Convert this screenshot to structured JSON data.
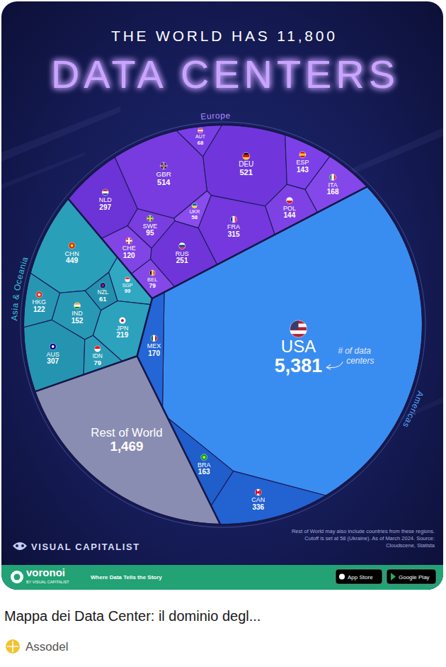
{
  "chart_data": {
    "type": "voronoi",
    "title": "THE WORLD HAS 11,800",
    "subtitle": "DATA CENTERS",
    "annotation": "# of data centers",
    "note": "Rest of World may also include countries from these regions. Cutoff is set at 58 (Ukraine). As of March 2024. Source: Cloudscene, Statista",
    "data_labels": true,
    "series": [
      {
        "name": "Europe",
        "color": "#b08aff",
        "colors": [
          "#7a3ee6",
          "#7036dc",
          "#7c40e8",
          "#8447ea",
          "#773bdf",
          "#6c33d6",
          "#8a4cec",
          "#7e42e4",
          "#7438de",
          "#8145e6",
          "#7a3de0",
          "#6f35d9",
          "#8548e8"
        ],
        "categories": [
          "AUT",
          "DEU",
          "ESP",
          "ITA",
          "GBR",
          "NLD",
          "UKR",
          "POL",
          "FRA",
          "CHE",
          "SWE",
          "RUS",
          "BEL"
        ],
        "values": [
          68,
          521,
          143,
          168,
          514,
          297,
          58,
          144,
          315,
          120,
          95,
          251,
          79
        ]
      },
      {
        "name": "Asia & Oceania",
        "color": "#3fc3d8",
        "colors": [
          "#2a9fba",
          "#2796b2",
          "#30a8c2",
          "#2899b5",
          "#2391ad",
          "#2ca2bd",
          "#2594b0",
          "#2b9cb8"
        ],
        "categories": [
          "CHN",
          "HKG",
          "SGP",
          "IND",
          "NZL",
          "JPN",
          "AUS",
          "IDN"
        ],
        "values": [
          449,
          122,
          99,
          152,
          61,
          219,
          307,
          79
        ]
      },
      {
        "name": "Americas",
        "color": "#55a6f6",
        "colors": [
          "#3a8df0",
          "#2466d6",
          "#1f5ecb",
          "#2262d1"
        ],
        "categories": [
          "USA",
          "MEX",
          "BRA",
          "CAN"
        ],
        "values": [
          5381,
          170,
          163,
          336
        ],
        "value_labels": [
          "5,381",
          "170",
          "163",
          "336"
        ]
      },
      {
        "name": null,
        "colors": [
          "#8a8db2"
        ],
        "categories": [
          "Rest of World"
        ],
        "values": [
          1469
        ],
        "value_labels": [
          "1,469"
        ]
      }
    ]
  },
  "branding": {
    "logo": "VISUAL CAPITALIST",
    "footer_logo": "voronoi",
    "footer_logo_tagline": "BY VISUAL CAPITALIST",
    "slogan": "Where Data Tells the Story",
    "badges": [
      "App Store",
      "Google Play"
    ]
  },
  "caption": {
    "title": "Mappa dei Data Center: il dominio degl...",
    "source": "Assodel"
  }
}
